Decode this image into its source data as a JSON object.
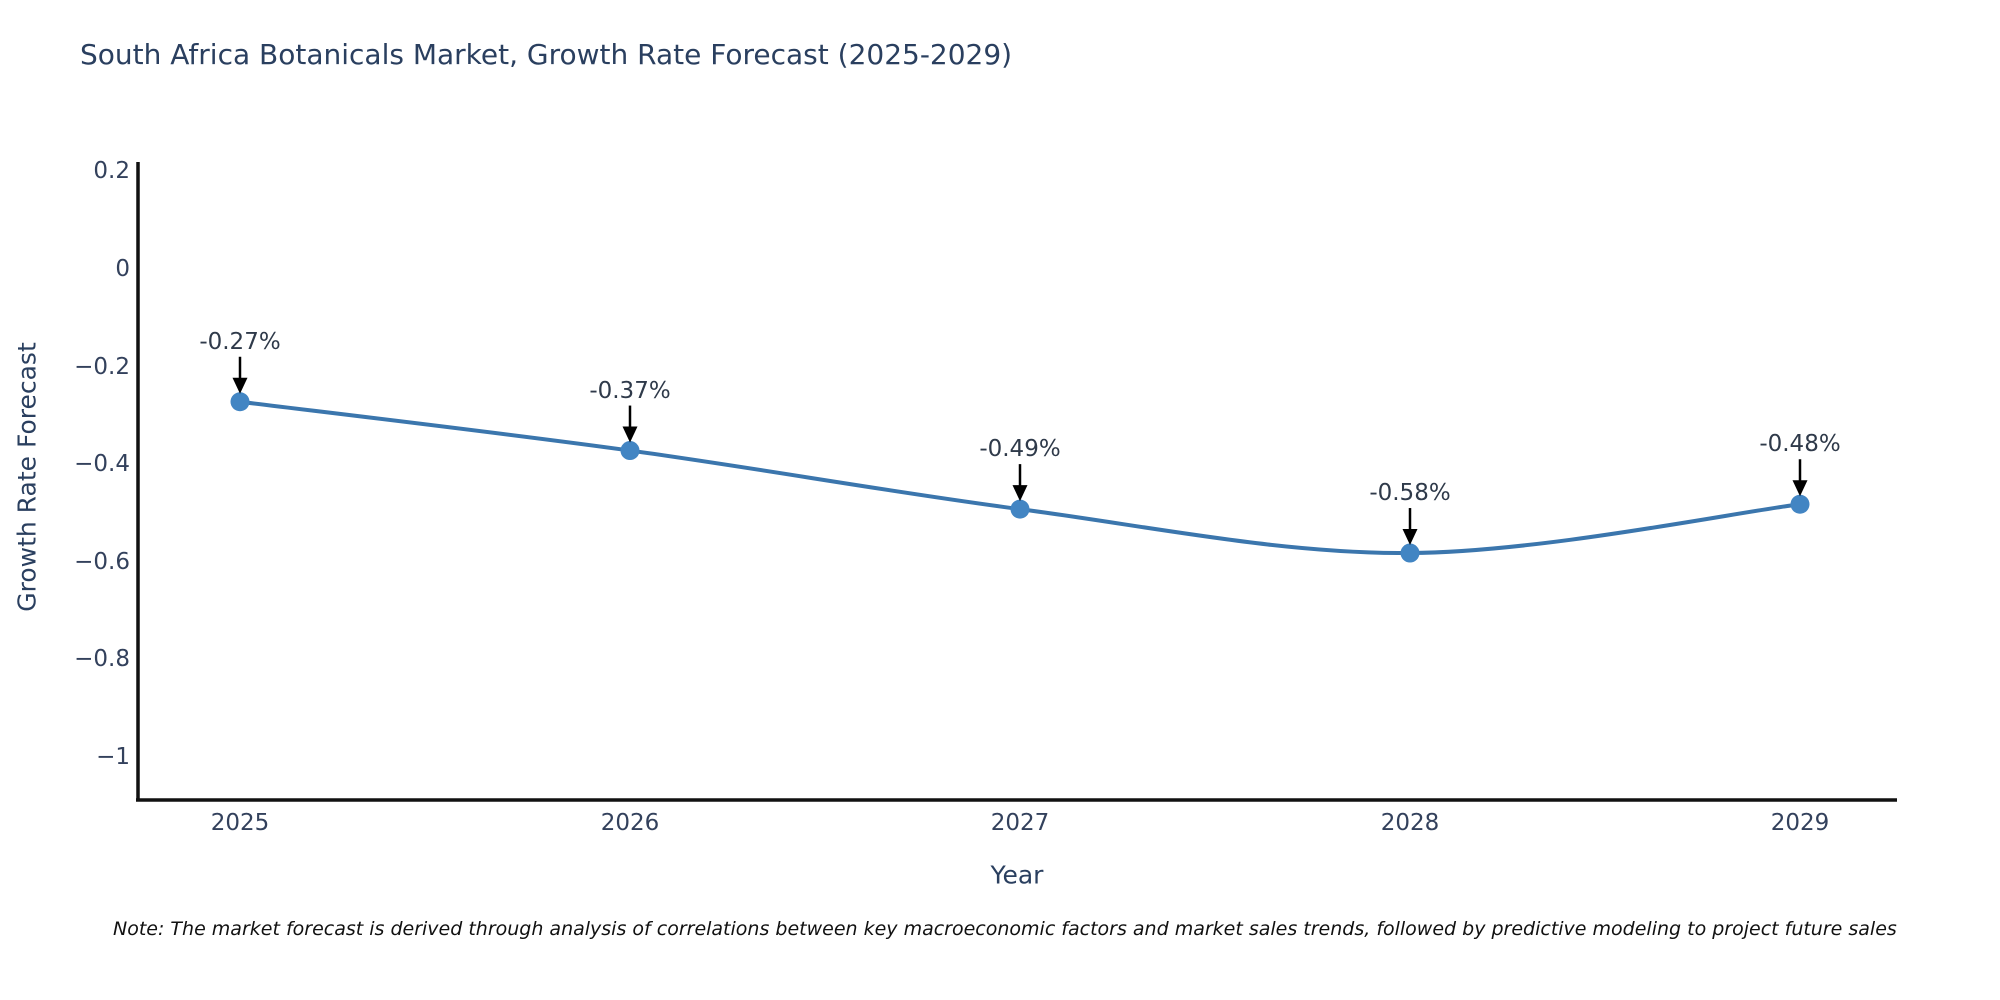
{
  "title": "South Africa Botanicals Market, Growth Rate Forecast (2025-2029)",
  "note": "Note: The market forecast is derived through analysis of correlations between key macroeconomic factors and market sales trends, followed by predictive modeling to project future sales",
  "chart_data": {
    "type": "line",
    "title": "South Africa Botanicals Market, Growth Rate Forecast (2025-2029)",
    "xlabel": "Year",
    "ylabel": "Growth Rate Forecast",
    "x": [
      2025,
      2026,
      2027,
      2028,
      2029
    ],
    "series": [
      {
        "name": "Growth Rate Forecast",
        "values": [
          -0.27,
          -0.37,
          -0.49,
          -0.58,
          -0.48
        ],
        "point_labels": [
          "-0.27%",
          "-0.37%",
          "-0.49%",
          "-0.58%",
          "-0.48%"
        ]
      }
    ],
    "x_tick_labels": [
      "2025",
      "2026",
      "2027",
      "2028",
      "2029"
    ],
    "y_ticks": [
      0.2,
      0,
      -0.2,
      -0.4,
      -0.6,
      -0.8,
      -1
    ],
    "y_tick_labels": [
      "0.2",
      "0",
      "−0.2",
      "−0.4",
      "−0.6",
      "−0.8",
      "−1"
    ],
    "ylim": [
      -1.09,
      0.22
    ],
    "line_shape": "spline",
    "grid": false,
    "legend": "none",
    "annotations_have_arrows": true,
    "colors": {
      "line": "#3b76ad",
      "marker": "#4285c3",
      "axis": "#111111",
      "arrow": "#000000",
      "title_text": "#2a3f5f",
      "tick_text": "#33415c",
      "annotation_text": "#2f3a4a",
      "note_text": "#111111",
      "background": "#ffffff"
    }
  }
}
